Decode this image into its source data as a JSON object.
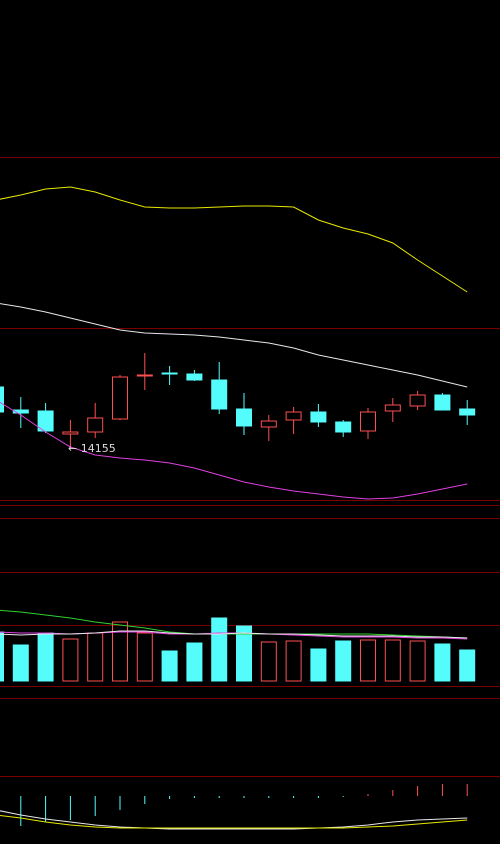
{
  "chart_data": [
    {
      "type": "candlestick",
      "ylim": [
        14039,
        15049
      ],
      "up_color": "#ff5050",
      "down_color": "#54fcfc",
      "open": [
        14275,
        14229,
        14227,
        14181,
        14185,
        14211,
        14297,
        14303,
        14301,
        14289,
        14231,
        14195,
        14209,
        14225,
        14205,
        14187,
        14227,
        14237,
        14259,
        14231
      ],
      "close": [
        14225,
        14223,
        14187,
        14185,
        14213,
        14295,
        14299,
        14301,
        14289,
        14231,
        14197,
        14207,
        14225,
        14205,
        14185,
        14225,
        14239,
        14259,
        14229,
        14219
      ],
      "high": [
        14275,
        14255,
        14243,
        14209,
        14243,
        14299,
        14343,
        14317,
        14309,
        14325,
        14263,
        14219,
        14235,
        14241,
        14209,
        14233,
        14253,
        14267,
        14263,
        14249
      ],
      "low": [
        14225,
        14193,
        14183,
        14155,
        14173,
        14209,
        14269,
        14279,
        14287,
        14221,
        14179,
        14167,
        14181,
        14195,
        14175,
        14171,
        14205,
        14229,
        14229,
        14199
      ],
      "lines": [
        {
          "color": "#e8e800",
          "values": [
            14649,
            14659,
            14671,
            14675,
            14665,
            14649,
            14635,
            14633,
            14633,
            14635,
            14637,
            14637,
            14635,
            14609,
            14593,
            14581,
            14563,
            14529,
            14497,
            14465
          ]
        },
        {
          "color": "#e8e8e8",
          "values": [
            14443,
            14435,
            14425,
            14413,
            14401,
            14389,
            14383,
            14381,
            14379,
            14375,
            14369,
            14363,
            14353,
            14339,
            14329,
            14319,
            14309,
            14299,
            14287,
            14275
          ]
        },
        {
          "color": "#e040e0",
          "values": [
            14249,
            14219,
            14185,
            14155,
            14139,
            14133,
            14129,
            14123,
            14113,
            14099,
            14085,
            14075,
            14067,
            14061,
            14055,
            14051,
            14053,
            14061,
            14071,
            14081
          ]
        }
      ],
      "annotation": "← 14155"
    },
    {
      "type": "bar",
      "ylim": [
        0,
        16300
      ],
      "values": [
        4900,
        3600,
        4800,
        4200,
        4800,
        5900,
        4800,
        3000,
        3800,
        6300,
        5500,
        3900,
        4000,
        3200,
        4000,
        4100,
        4100,
        4000,
        3700,
        3100
      ],
      "lines": [
        {
          "color": "#30d030",
          "values": [
            7100,
            6900,
            6600,
            6300,
            5900,
            5600,
            5300,
            4900,
            4700,
            4700,
            4700,
            4700,
            4700,
            4700,
            4700,
            4700,
            4600,
            4500,
            4400,
            4300
          ]
        },
        {
          "color": "#e040e0",
          "values": [
            4900,
            4800,
            4800,
            4700,
            4800,
            4900,
            4900,
            4700,
            4700,
            4800,
            4800,
            4700,
            4600,
            4500,
            4400,
            4400,
            4400,
            4300,
            4300,
            4200
          ]
        },
        {
          "color": "#e8e8e8",
          "values": [
            4700,
            4600,
            4700,
            4700,
            4800,
            5000,
            5000,
            4800,
            4700,
            4700,
            4800,
            4700,
            4700,
            4600,
            4500,
            4500,
            4500,
            4400,
            4400,
            4300
          ]
        }
      ]
    },
    {
      "type": "histogram-line",
      "ylim": [
        -48,
        98
      ],
      "up_color": "#ff5050",
      "down_color": "#54fcfc",
      "values": [
        -33,
        -30,
        -26,
        -24,
        -20,
        -14,
        -8,
        -3,
        -2,
        -2,
        -2,
        -2,
        -2,
        -2,
        -1,
        2,
        6,
        10,
        12,
        12
      ],
      "lines": [
        {
          "color": "#e8e8e8",
          "values": [
            -14,
            -19,
            -23,
            -26,
            -29,
            -31,
            -32,
            -33,
            -33,
            -33,
            -33,
            -33,
            -33,
            -32,
            -31,
            -29,
            -26,
            -24,
            -23,
            -22
          ]
        },
        {
          "color": "#e8e800",
          "values": [
            -19,
            -22,
            -26,
            -29,
            -31,
            -32,
            -32,
            -32,
            -32,
            -32,
            -32,
            -32,
            -32,
            -32,
            -32,
            -31,
            -30,
            -28,
            -26,
            -24
          ]
        }
      ]
    }
  ]
}
